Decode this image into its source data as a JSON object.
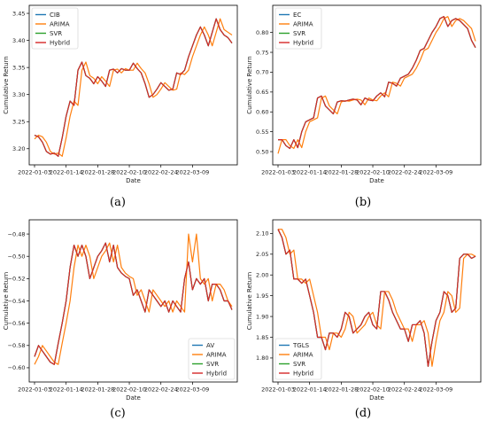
{
  "colors": {
    "series0": "#1f77b4",
    "series1": "#ff7f0e",
    "series2": "#2ca02c",
    "series3": "#d62728"
  },
  "chart_data": [
    {
      "type": "line",
      "panel_label": "(a)",
      "xlabel": "Date",
      "ylabel": "Cumulative Return",
      "legend_position": "top-left",
      "xlim": [
        0,
        50
      ],
      "ylim": [
        3.18,
        3.455
      ],
      "yticks": [
        3.2,
        3.25,
        3.3,
        3.35,
        3.4,
        3.45
      ],
      "ytick_labels": [
        "3.20",
        "3.25",
        "3.30",
        "3.35",
        "3.40",
        "3.45"
      ],
      "xticks": [
        0,
        8,
        16,
        24,
        32,
        40
      ],
      "xtick_labels": [
        "2022-01-03",
        "2022-01-14",
        "2022-01-28",
        "2022-02-10",
        "2022-02-24",
        "2022-03-09"
      ],
      "series": [
        {
          "name": "CIB",
          "values": [
            3.225,
            3.222,
            3.212,
            3.195,
            3.19,
            3.192,
            3.186,
            3.22,
            3.26,
            3.288,
            3.28,
            3.345,
            3.36,
            3.335,
            3.33,
            3.32,
            3.333,
            3.325,
            3.315,
            3.345,
            3.347,
            3.34,
            3.348,
            3.345,
            3.345,
            3.358,
            3.348,
            3.34,
            3.32,
            3.295,
            3.3,
            3.31,
            3.322,
            3.315,
            3.308,
            3.31,
            3.34,
            3.337,
            3.345,
            3.37,
            3.39,
            3.41,
            3.425,
            3.41,
            3.39,
            3.415,
            3.44,
            3.42,
            3.41,
            3.405,
            3.395
          ]
        },
        {
          "name": "ARIMA",
          "values": [
            3.218,
            3.225,
            3.222,
            3.212,
            3.195,
            3.19,
            3.192,
            3.186,
            3.22,
            3.26,
            3.288,
            3.28,
            3.345,
            3.36,
            3.335,
            3.33,
            3.32,
            3.333,
            3.325,
            3.315,
            3.345,
            3.347,
            3.34,
            3.348,
            3.345,
            3.345,
            3.358,
            3.348,
            3.34,
            3.32,
            3.295,
            3.3,
            3.31,
            3.322,
            3.315,
            3.308,
            3.31,
            3.34,
            3.337,
            3.345,
            3.37,
            3.39,
            3.41,
            3.425,
            3.41,
            3.39,
            3.415,
            3.44,
            3.42,
            3.415,
            3.41
          ]
        },
        {
          "name": "SVR",
          "values": [
            3.225,
            3.222,
            3.212,
            3.195,
            3.19,
            3.192,
            3.186,
            3.22,
            3.26,
            3.288,
            3.28,
            3.345,
            3.36,
            3.335,
            3.33,
            3.32,
            3.333,
            3.325,
            3.315,
            3.345,
            3.347,
            3.34,
            3.348,
            3.345,
            3.345,
            3.358,
            3.348,
            3.34,
            3.32,
            3.295,
            3.3,
            3.31,
            3.322,
            3.315,
            3.308,
            3.31,
            3.34,
            3.337,
            3.345,
            3.37,
            3.39,
            3.41,
            3.425,
            3.41,
            3.39,
            3.415,
            3.44,
            3.42,
            3.41,
            3.405,
            3.395
          ]
        },
        {
          "name": "Hybrid",
          "values": [
            3.225,
            3.222,
            3.212,
            3.195,
            3.19,
            3.192,
            3.186,
            3.22,
            3.26,
            3.288,
            3.28,
            3.345,
            3.36,
            3.335,
            3.33,
            3.32,
            3.333,
            3.325,
            3.315,
            3.345,
            3.347,
            3.34,
            3.348,
            3.345,
            3.345,
            3.358,
            3.348,
            3.34,
            3.32,
            3.295,
            3.3,
            3.31,
            3.322,
            3.315,
            3.308,
            3.31,
            3.34,
            3.337,
            3.345,
            3.37,
            3.39,
            3.41,
            3.425,
            3.41,
            3.39,
            3.415,
            3.44,
            3.42,
            3.41,
            3.405,
            3.395
          ]
        }
      ]
    },
    {
      "type": "line",
      "panel_label": "(b)",
      "xlabel": "Date",
      "ylabel": "Cumulative Return",
      "legend_position": "top-left",
      "xlim": [
        0,
        50
      ],
      "ylim": [
        0.48,
        0.855
      ],
      "yticks": [
        0.5,
        0.55,
        0.6,
        0.65,
        0.7,
        0.75,
        0.8
      ],
      "ytick_labels": [
        "0.50",
        "0.55",
        "0.60",
        "0.65",
        "0.70",
        "0.75",
        "0.80"
      ],
      "xticks": [
        0,
        8,
        16,
        24,
        32,
        40
      ],
      "xtick_labels": [
        "2022-01-03",
        "2022-01-14",
        "2022-01-28",
        "2022-02-10",
        "2022-02-24",
        "2022-03-09"
      ],
      "series": [
        {
          "name": "EC",
          "values": [
            0.53,
            0.53,
            0.515,
            0.508,
            0.53,
            0.51,
            0.55,
            0.575,
            0.58,
            0.585,
            0.635,
            0.64,
            0.615,
            0.605,
            0.595,
            0.625,
            0.628,
            0.627,
            0.63,
            0.632,
            0.63,
            0.618,
            0.635,
            0.63,
            0.628,
            0.64,
            0.648,
            0.638,
            0.675,
            0.672,
            0.665,
            0.685,
            0.69,
            0.695,
            0.71,
            0.73,
            0.755,
            0.76,
            0.78,
            0.8,
            0.815,
            0.835,
            0.84,
            0.815,
            0.83,
            0.835,
            0.83,
            0.82,
            0.81,
            0.78,
            0.762
          ]
        },
        {
          "name": "ARIMA",
          "values": [
            0.495,
            0.53,
            0.53,
            0.515,
            0.508,
            0.53,
            0.51,
            0.55,
            0.575,
            0.58,
            0.585,
            0.635,
            0.64,
            0.615,
            0.605,
            0.595,
            0.625,
            0.628,
            0.627,
            0.63,
            0.632,
            0.63,
            0.618,
            0.635,
            0.63,
            0.628,
            0.64,
            0.648,
            0.638,
            0.675,
            0.672,
            0.665,
            0.685,
            0.69,
            0.695,
            0.71,
            0.73,
            0.755,
            0.76,
            0.78,
            0.8,
            0.815,
            0.835,
            0.84,
            0.815,
            0.83,
            0.835,
            0.83,
            0.82,
            0.81,
            0.778
          ]
        },
        {
          "name": "SVR",
          "values": [
            0.53,
            0.53,
            0.515,
            0.508,
            0.53,
            0.51,
            0.55,
            0.575,
            0.58,
            0.585,
            0.635,
            0.64,
            0.615,
            0.605,
            0.595,
            0.625,
            0.628,
            0.627,
            0.63,
            0.632,
            0.63,
            0.618,
            0.635,
            0.63,
            0.628,
            0.64,
            0.648,
            0.638,
            0.675,
            0.672,
            0.665,
            0.685,
            0.69,
            0.695,
            0.71,
            0.73,
            0.755,
            0.76,
            0.78,
            0.8,
            0.815,
            0.835,
            0.84,
            0.815,
            0.83,
            0.835,
            0.83,
            0.82,
            0.81,
            0.78,
            0.762
          ]
        },
        {
          "name": "Hybrid",
          "values": [
            0.53,
            0.53,
            0.515,
            0.508,
            0.53,
            0.51,
            0.55,
            0.575,
            0.58,
            0.585,
            0.635,
            0.64,
            0.615,
            0.605,
            0.595,
            0.625,
            0.628,
            0.627,
            0.63,
            0.632,
            0.63,
            0.618,
            0.635,
            0.63,
            0.628,
            0.64,
            0.648,
            0.638,
            0.675,
            0.672,
            0.665,
            0.685,
            0.69,
            0.695,
            0.71,
            0.73,
            0.755,
            0.76,
            0.78,
            0.8,
            0.815,
            0.835,
            0.84,
            0.815,
            0.83,
            0.835,
            0.83,
            0.82,
            0.81,
            0.78,
            0.762
          ]
        }
      ]
    },
    {
      "type": "line",
      "panel_label": "(c)",
      "xlabel": "Date",
      "ylabel": "Cumulative Return",
      "legend_position": "bottom-right",
      "xlim": [
        0,
        50
      ],
      "ylim": [
        -0.608,
        -0.472
      ],
      "yticks": [
        -0.6,
        -0.58,
        -0.56,
        -0.54,
        -0.52,
        -0.5,
        -0.48
      ],
      "ytick_labels": [
        "−0.60",
        "−0.58",
        "−0.56",
        "−0.54",
        "−0.52",
        "−0.50",
        "−0.48"
      ],
      "xticks": [
        0,
        8,
        16,
        24,
        32,
        40
      ],
      "xtick_labels": [
        "2022-01-03",
        "2022-01-14",
        "2022-01-28",
        "2022-02-10",
        "2022-02-24",
        "2022-03-09"
      ],
      "series": [
        {
          "name": "AV",
          "values": [
            -0.59,
            -0.58,
            -0.585,
            -0.59,
            -0.595,
            -0.597,
            -0.578,
            -0.56,
            -0.54,
            -0.51,
            -0.49,
            -0.5,
            -0.49,
            -0.5,
            -0.52,
            -0.51,
            -0.5,
            -0.495,
            -0.488,
            -0.505,
            -0.49,
            -0.51,
            -0.515,
            -0.518,
            -0.52,
            -0.535,
            -0.53,
            -0.54,
            -0.55,
            -0.53,
            -0.535,
            -0.54,
            -0.545,
            -0.54,
            -0.55,
            -0.54,
            -0.545,
            -0.55,
            -0.52,
            -0.505,
            -0.53,
            -0.52,
            -0.525,
            -0.52,
            -0.54,
            -0.525,
            -0.525,
            -0.53,
            -0.54,
            -0.54,
            -0.548
          ]
        },
        {
          "name": "ARIMA",
          "values": [
            -0.597,
            -0.59,
            -0.58,
            -0.585,
            -0.59,
            -0.595,
            -0.597,
            -0.578,
            -0.56,
            -0.54,
            -0.51,
            -0.49,
            -0.5,
            -0.49,
            -0.5,
            -0.52,
            -0.51,
            -0.5,
            -0.495,
            -0.488,
            -0.505,
            -0.49,
            -0.51,
            -0.515,
            -0.518,
            -0.52,
            -0.535,
            -0.53,
            -0.54,
            -0.55,
            -0.53,
            -0.535,
            -0.54,
            -0.545,
            -0.54,
            -0.55,
            -0.54,
            -0.545,
            -0.55,
            -0.48,
            -0.505,
            -0.48,
            -0.52,
            -0.525,
            -0.52,
            -0.54,
            -0.525,
            -0.525,
            -0.53,
            -0.54,
            -0.545
          ]
        },
        {
          "name": "SVR",
          "values": [
            -0.59,
            -0.58,
            -0.585,
            -0.59,
            -0.595,
            -0.597,
            -0.578,
            -0.56,
            -0.54,
            -0.51,
            -0.49,
            -0.5,
            -0.49,
            -0.5,
            -0.52,
            -0.51,
            -0.5,
            -0.495,
            -0.488,
            -0.505,
            -0.49,
            -0.51,
            -0.515,
            -0.518,
            -0.52,
            -0.535,
            -0.53,
            -0.54,
            -0.55,
            -0.53,
            -0.535,
            -0.54,
            -0.545,
            -0.54,
            -0.55,
            -0.54,
            -0.545,
            -0.55,
            -0.52,
            -0.505,
            -0.53,
            -0.52,
            -0.525,
            -0.52,
            -0.54,
            -0.525,
            -0.525,
            -0.53,
            -0.54,
            -0.54,
            -0.548
          ]
        },
        {
          "name": "Hybrid",
          "values": [
            -0.59,
            -0.58,
            -0.585,
            -0.59,
            -0.595,
            -0.597,
            -0.578,
            -0.56,
            -0.54,
            -0.51,
            -0.49,
            -0.5,
            -0.49,
            -0.5,
            -0.52,
            -0.51,
            -0.5,
            -0.495,
            -0.488,
            -0.505,
            -0.49,
            -0.51,
            -0.515,
            -0.518,
            -0.52,
            -0.535,
            -0.53,
            -0.54,
            -0.55,
            -0.53,
            -0.535,
            -0.54,
            -0.545,
            -0.54,
            -0.55,
            -0.54,
            -0.545,
            -0.55,
            -0.52,
            -0.505,
            -0.53,
            -0.52,
            -0.525,
            -0.52,
            -0.54,
            -0.525,
            -0.525,
            -0.53,
            -0.54,
            -0.54,
            -0.548
          ]
        }
      ]
    },
    {
      "type": "line",
      "panel_label": "(d)",
      "xlabel": "Date",
      "ylabel": "Cumulative Return",
      "legend_position": "bottom-left",
      "xlim": [
        0,
        50
      ],
      "ylim": [
        1.755,
        2.12
      ],
      "yticks": [
        1.8,
        1.85,
        1.9,
        1.95,
        2.0,
        2.05,
        2.1
      ],
      "ytick_labels": [
        "1.80",
        "1.85",
        "1.90",
        "1.95",
        "2.00",
        "2.05",
        "2.10"
      ],
      "xticks": [
        0,
        8,
        16,
        24,
        32,
        40
      ],
      "xtick_labels": [
        "2022-01-03",
        "2022-01-14",
        "2022-01-28",
        "2022-02-10",
        "2022-02-24",
        "2022-03-09"
      ],
      "series": [
        {
          "name": "TGLS",
          "values": [
            2.11,
            2.09,
            2.05,
            2.06,
            1.99,
            1.99,
            1.98,
            1.99,
            1.95,
            1.91,
            1.85,
            1.85,
            1.82,
            1.86,
            1.86,
            1.85,
            1.87,
            1.91,
            1.9,
            1.86,
            1.87,
            1.88,
            1.9,
            1.91,
            1.88,
            1.87,
            1.96,
            1.96,
            1.94,
            1.91,
            1.89,
            1.87,
            1.87,
            1.84,
            1.88,
            1.88,
            1.89,
            1.86,
            1.78,
            1.84,
            1.89,
            1.91,
            1.96,
            1.95,
            1.91,
            1.92,
            2.04,
            2.05,
            2.05,
            2.04,
            2.045
          ]
        },
        {
          "name": "ARIMA",
          "values": [
            2.11,
            2.11,
            2.09,
            2.05,
            2.06,
            1.99,
            1.99,
            1.98,
            1.99,
            1.95,
            1.91,
            1.85,
            1.85,
            1.82,
            1.86,
            1.86,
            1.85,
            1.87,
            1.91,
            1.9,
            1.86,
            1.87,
            1.88,
            1.9,
            1.91,
            1.88,
            1.87,
            1.96,
            1.96,
            1.94,
            1.91,
            1.89,
            1.87,
            1.87,
            1.84,
            1.88,
            1.88,
            1.89,
            1.86,
            1.78,
            1.84,
            1.89,
            1.91,
            1.96,
            1.95,
            1.91,
            1.92,
            2.04,
            2.05,
            2.05,
            2.045
          ]
        },
        {
          "name": "SVR",
          "values": [
            2.11,
            2.09,
            2.05,
            2.06,
            1.99,
            1.99,
            1.98,
            1.99,
            1.95,
            1.91,
            1.85,
            1.85,
            1.82,
            1.86,
            1.86,
            1.85,
            1.87,
            1.91,
            1.9,
            1.86,
            1.87,
            1.88,
            1.9,
            1.91,
            1.88,
            1.87,
            1.96,
            1.96,
            1.94,
            1.91,
            1.89,
            1.87,
            1.87,
            1.84,
            1.88,
            1.88,
            1.89,
            1.86,
            1.78,
            1.84,
            1.89,
            1.91,
            1.96,
            1.95,
            1.91,
            1.92,
            2.04,
            2.05,
            2.05,
            2.04,
            2.045
          ]
        },
        {
          "name": "Hybrid",
          "values": [
            2.11,
            2.09,
            2.05,
            2.06,
            1.99,
            1.99,
            1.98,
            1.99,
            1.95,
            1.91,
            1.85,
            1.85,
            1.82,
            1.86,
            1.86,
            1.85,
            1.87,
            1.91,
            1.9,
            1.86,
            1.87,
            1.88,
            1.9,
            1.91,
            1.88,
            1.87,
            1.96,
            1.96,
            1.94,
            1.91,
            1.89,
            1.87,
            1.87,
            1.84,
            1.88,
            1.88,
            1.89,
            1.86,
            1.78,
            1.84,
            1.89,
            1.91,
            1.96,
            1.95,
            1.91,
            1.92,
            2.04,
            2.05,
            2.05,
            2.04,
            2.045
          ]
        }
      ]
    }
  ]
}
